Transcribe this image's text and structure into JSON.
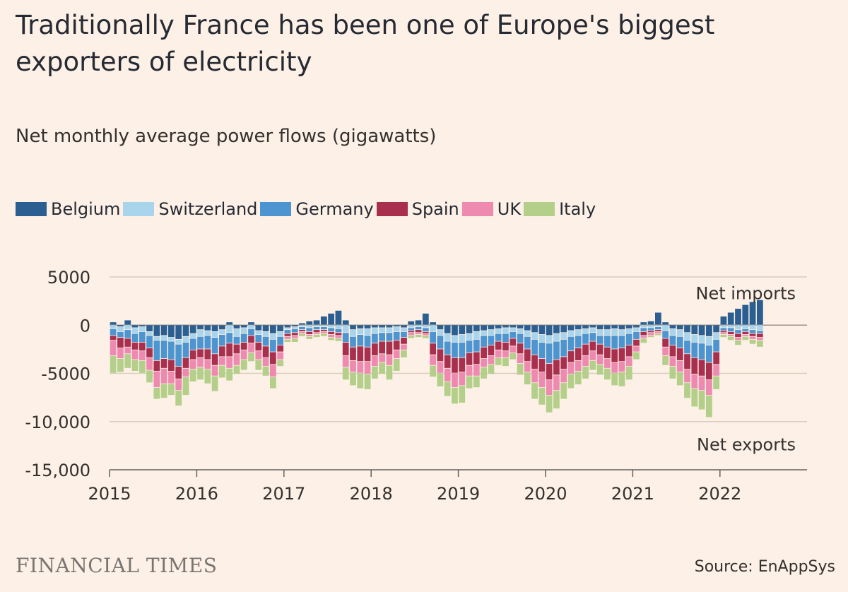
{
  "title": "Traditionally France has been one of Europe's biggest exporters of electricity",
  "subtitle": "Net monthly average power flows (gigawatts)",
  "legend": [
    {
      "name": "Belgium",
      "color": "#2b5f91"
    },
    {
      "name": "Switzerland",
      "color": "#a8d4ec"
    },
    {
      "name": "Germany",
      "color": "#4d95d0"
    },
    {
      "name": "Spain",
      "color": "#a8304e"
    },
    {
      "name": "UK",
      "color": "#ee8ab0"
    },
    {
      "name": "Italy",
      "color": "#b3cf8a"
    }
  ],
  "brand": "FINANCIAL TIMES",
  "source": "Source: EnAppSys",
  "chart_data": {
    "type": "bar",
    "stacked": true,
    "title": "Net monthly average power flows (gigawatts)",
    "ylim": [
      -15000,
      5000
    ],
    "yticks": [
      5000,
      0,
      -5000,
      -10000,
      -15000
    ],
    "ytick_labels": [
      "5000",
      "0",
      "-5000",
      "-10,000",
      "-15,000"
    ],
    "xtick_labels": [
      "2015",
      "2016",
      "2017",
      "2018",
      "2019",
      "2020",
      "2021",
      "2022"
    ],
    "grid": true,
    "legend_position": "top",
    "annotations": [
      "Net imports",
      "Net exports"
    ],
    "series_order": [
      "Belgium",
      "Switzerland",
      "Germany",
      "Spain",
      "UK",
      "Italy"
    ],
    "colors": [
      "#2b5f91",
      "#a8d4ec",
      "#4d95d0",
      "#a8304e",
      "#ee8ab0",
      "#b3cf8a"
    ],
    "months": [
      {
        "date": "2015-01",
        "values": [
          300,
          -400,
          -700,
          -500,
          -1600,
          -1800
        ]
      },
      {
        "date": "2015-02",
        "values": [
          -200,
          -500,
          -600,
          -1100,
          -1100,
          -1400
        ]
      },
      {
        "date": "2015-03",
        "values": [
          500,
          -500,
          -900,
          -900,
          -700,
          -1500
        ]
      },
      {
        "date": "2015-04",
        "values": [
          -300,
          -600,
          -900,
          -800,
          -1000,
          -1200
        ]
      },
      {
        "date": "2015-05",
        "values": [
          -200,
          -500,
          -1100,
          -900,
          -1000,
          -1300
        ]
      },
      {
        "date": "2015-06",
        "values": [
          -700,
          -400,
          -1300,
          -1000,
          -1300,
          -1300
        ]
      },
      {
        "date": "2015-07",
        "values": [
          -1200,
          -400,
          -2100,
          -1100,
          -1700,
          -1200
        ]
      },
      {
        "date": "2015-08",
        "values": [
          -1100,
          -500,
          -1900,
          -1000,
          -1600,
          -1500
        ]
      },
      {
        "date": "2015-09",
        "values": [
          -1300,
          -400,
          -1900,
          -1200,
          -1300,
          -1200
        ]
      },
      {
        "date": "2015-10",
        "values": [
          -1500,
          -500,
          -2300,
          -1300,
          -1200,
          -1600
        ]
      },
      {
        "date": "2015-11",
        "values": [
          -1200,
          -600,
          -1600,
          -1100,
          -900,
          -1900
        ]
      },
      {
        "date": "2015-12",
        "values": [
          -900,
          -500,
          -1200,
          -1000,
          -1000,
          -1300
        ]
      },
      {
        "date": "2016-01",
        "values": [
          -500,
          -700,
          -1300,
          -900,
          -1000,
          -1300
        ]
      },
      {
        "date": "2016-02",
        "values": [
          -600,
          -500,
          -1400,
          -1100,
          -1000,
          -1500
        ]
      },
      {
        "date": "2016-03",
        "values": [
          -700,
          -600,
          -1700,
          -1200,
          -1100,
          -1600
        ]
      },
      {
        "date": "2016-04",
        "values": [
          -500,
          -500,
          -1200,
          -1100,
          -900,
          -1300
        ]
      },
      {
        "date": "2016-05",
        "values": [
          300,
          -800,
          -1100,
          -1400,
          -1200,
          -1300
        ]
      },
      {
        "date": "2016-06",
        "values": [
          -400,
          -800,
          -800,
          -1000,
          -1200,
          -900
        ]
      },
      {
        "date": "2016-07",
        "values": [
          -300,
          -600,
          -900,
          -800,
          -1000,
          -1100
        ]
      },
      {
        "date": "2016-08",
        "values": [
          300,
          -400,
          -700,
          -800,
          -1000,
          -900
        ]
      },
      {
        "date": "2016-09",
        "values": [
          -600,
          -400,
          -800,
          -900,
          -900,
          -1100
        ]
      },
      {
        "date": "2016-10",
        "values": [
          -700,
          -500,
          -1000,
          -1200,
          -900,
          -1000
        ]
      },
      {
        "date": "2016-11",
        "values": [
          -900,
          -600,
          -1300,
          -1300,
          -1300,
          -1200
        ]
      },
      {
        "date": "2016-12",
        "values": [
          -700,
          -500,
          -900,
          -700,
          -800,
          -700
        ]
      },
      {
        "date": "2017-01",
        "values": [
          -300,
          -200,
          -400,
          -300,
          -300,
          -300
        ]
      },
      {
        "date": "2017-02",
        "values": [
          -200,
          -200,
          -400,
          -300,
          -300,
          -400
        ]
      },
      {
        "date": "2017-03",
        "values": [
          200,
          -200,
          -300,
          -200,
          -200,
          -300
        ]
      },
      {
        "date": "2017-04",
        "values": [
          400,
          -300,
          -400,
          -300,
          -200,
          -300
        ]
      },
      {
        "date": "2017-05",
        "values": [
          500,
          -200,
          -300,
          -300,
          -200,
          -300
        ]
      },
      {
        "date": "2017-06",
        "values": [
          900,
          -200,
          -300,
          -200,
          -200,
          -300
        ]
      },
      {
        "date": "2017-07",
        "values": [
          1200,
          -300,
          -400,
          -300,
          -300,
          -300
        ]
      },
      {
        "date": "2017-08",
        "values": [
          1500,
          -400,
          -400,
          -300,
          -300,
          -300
        ]
      },
      {
        "date": "2017-09",
        "values": [
          500,
          -800,
          -1000,
          -1400,
          -1200,
          -1300
        ]
      },
      {
        "date": "2017-10",
        "values": [
          -500,
          -700,
          -1100,
          -1400,
          -1200,
          -1400
        ]
      },
      {
        "date": "2017-11",
        "values": [
          -400,
          -600,
          -1200,
          -1600,
          -1200,
          -1600
        ]
      },
      {
        "date": "2017-12",
        "values": [
          -400,
          -700,
          -1200,
          -1500,
          -1300,
          -1600
        ]
      },
      {
        "date": "2018-01",
        "values": [
          -300,
          -600,
          -1000,
          -1300,
          -1100,
          -1300
        ]
      },
      {
        "date": "2018-02",
        "values": [
          -300,
          -500,
          -900,
          -1300,
          -900,
          -1200
        ]
      },
      {
        "date": "2018-03",
        "values": [
          -300,
          -500,
          -900,
          -1400,
          -1100,
          -1500
        ]
      },
      {
        "date": "2018-04",
        "values": [
          -200,
          -500,
          -900,
          -1000,
          -900,
          -1300
        ]
      },
      {
        "date": "2018-05",
        "values": [
          -300,
          -400,
          -600,
          -700,
          -600,
          -800
        ]
      },
      {
        "date": "2018-06",
        "values": [
          400,
          -300,
          -300,
          -200,
          -300,
          -300
        ]
      },
      {
        "date": "2018-07",
        "values": [
          500,
          -200,
          -300,
          -300,
          -200,
          -300
        ]
      },
      {
        "date": "2018-08",
        "values": [
          1200,
          -300,
          -400,
          -200,
          -200,
          -300
        ]
      },
      {
        "date": "2018-09",
        "values": [
          300,
          -700,
          -1200,
          -1200,
          -1100,
          -1200
        ]
      },
      {
        "date": "2018-10",
        "values": [
          -500,
          -600,
          -1400,
          -1300,
          -1200,
          -1400
        ]
      },
      {
        "date": "2018-11",
        "values": [
          -900,
          -800,
          -1400,
          -1400,
          -1400,
          -1500
        ]
      },
      {
        "date": "2018-12",
        "values": [
          -1100,
          -700,
          -1600,
          -1600,
          -1500,
          -1700
        ]
      },
      {
        "date": "2019-01",
        "values": [
          -1000,
          -800,
          -1600,
          -1500,
          -1400,
          -1800
        ]
      },
      {
        "date": "2019-02",
        "values": [
          -900,
          -700,
          -1300,
          -1300,
          -1100,
          -1300
        ]
      },
      {
        "date": "2019-03",
        "values": [
          -700,
          -800,
          -1300,
          -1300,
          -1200,
          -1200
        ]
      },
      {
        "date": "2019-04",
        "values": [
          -600,
          -500,
          -1200,
          -1200,
          -900,
          -1200
        ]
      },
      {
        "date": "2019-05",
        "values": [
          -500,
          -600,
          -1000,
          -1100,
          -900,
          -1000
        ]
      },
      {
        "date": "2019-06",
        "values": [
          -400,
          -500,
          -800,
          -900,
          -800,
          -800
        ]
      },
      {
        "date": "2019-07",
        "values": [
          -300,
          -600,
          -900,
          -900,
          -700,
          -900
        ]
      },
      {
        "date": "2019-08",
        "values": [
          -300,
          -400,
          -700,
          -800,
          -700,
          -700
        ]
      },
      {
        "date": "2019-09",
        "values": [
          -400,
          -500,
          -1000,
          -1100,
          -1000,
          -1200
        ]
      },
      {
        "date": "2019-10",
        "values": [
          -600,
          -600,
          -1300,
          -1300,
          -1100,
          -1300
        ]
      },
      {
        "date": "2019-11",
        "values": [
          -800,
          -700,
          -1600,
          -1500,
          -1400,
          -1700
        ]
      },
      {
        "date": "2019-12",
        "values": [
          -1000,
          -800,
          -1700,
          -1400,
          -1600,
          -1800
        ]
      },
      {
        "date": "2020-01",
        "values": [
          -1100,
          -800,
          -2100,
          -1700,
          -1600,
          -1800
        ]
      },
      {
        "date": "2020-02",
        "values": [
          -900,
          -800,
          -1900,
          -1600,
          -1600,
          -1900
        ]
      },
      {
        "date": "2020-03",
        "values": [
          -800,
          -700,
          -1800,
          -1300,
          -1400,
          -1700
        ]
      },
      {
        "date": "2020-04",
        "values": [
          -600,
          -600,
          -1500,
          -1200,
          -1200,
          -1500
        ]
      },
      {
        "date": "2020-05",
        "values": [
          -500,
          -600,
          -1300,
          -1300,
          -1100,
          -1400
        ]
      },
      {
        "date": "2020-06",
        "values": [
          -400,
          -500,
          -1100,
          -1200,
          -1100,
          -1300
        ]
      },
      {
        "date": "2020-07",
        "values": [
          -300,
          -500,
          -900,
          -1000,
          -1000,
          -1000
        ]
      },
      {
        "date": "2020-08",
        "values": [
          -500,
          -600,
          -900,
          -1100,
          -1000,
          -1100
        ]
      },
      {
        "date": "2020-09",
        "values": [
          -500,
          -600,
          -1200,
          -1200,
          -1000,
          -1200
        ]
      },
      {
        "date": "2020-10",
        "values": [
          -400,
          -700,
          -1400,
          -1400,
          -1100,
          -1300
        ]
      },
      {
        "date": "2020-11",
        "values": [
          -500,
          -600,
          -1300,
          -1400,
          -1100,
          -1500
        ]
      },
      {
        "date": "2020-12",
        "values": [
          -400,
          -500,
          -1200,
          -1200,
          -1000,
          -1400
        ]
      },
      {
        "date": "2021-01",
        "values": [
          -300,
          -400,
          -800,
          -700,
          -600,
          -800
        ]
      },
      {
        "date": "2021-02",
        "values": [
          300,
          -300,
          -400,
          -400,
          -300,
          -500
        ]
      },
      {
        "date": "2021-03",
        "values": [
          400,
          -300,
          -300,
          -200,
          -300,
          -200
        ]
      },
      {
        "date": "2021-04",
        "values": [
          1300,
          -200,
          -300,
          -200,
          -200,
          -200
        ]
      },
      {
        "date": "2021-05",
        "values": [
          300,
          -600,
          -800,
          -900,
          -900,
          -1000
        ]
      },
      {
        "date": "2021-06",
        "values": [
          -400,
          -700,
          -1000,
          -1200,
          -1000,
          -1300
        ]
      },
      {
        "date": "2021-07",
        "values": [
          -500,
          -700,
          -1200,
          -1300,
          -1200,
          -1400
        ]
      },
      {
        "date": "2021-08",
        "values": [
          -800,
          -800,
          -1400,
          -1600,
          -1400,
          -1600
        ]
      },
      {
        "date": "2021-09",
        "values": [
          -1000,
          -800,
          -1600,
          -1700,
          -1500,
          -1900
        ]
      },
      {
        "date": "2021-10",
        "values": [
          -1100,
          -800,
          -1700,
          -1700,
          -1500,
          -2000
        ]
      },
      {
        "date": "2021-11",
        "values": [
          -1200,
          -900,
          -1800,
          -1800,
          -1600,
          -2300
        ]
      },
      {
        "date": "2021-12",
        "values": [
          -800,
          -700,
          -1300,
          -1300,
          -1200,
          -1400
        ]
      },
      {
        "date": "2022-01",
        "values": [
          900,
          -300,
          -300,
          -200,
          -200,
          -300
        ]
      },
      {
        "date": "2022-02",
        "values": [
          1300,
          -300,
          -400,
          -300,
          -200,
          -400
        ]
      },
      {
        "date": "2022-03",
        "values": [
          1700,
          -500,
          -400,
          -400,
          -300,
          -500
        ]
      },
      {
        "date": "2022-04",
        "values": [
          2100,
          -400,
          -300,
          -300,
          -200,
          -400
        ]
      },
      {
        "date": "2022-05",
        "values": [
          2400,
          -500,
          -400,
          -300,
          -300,
          -500
        ]
      },
      {
        "date": "2022-06",
        "values": [
          2600,
          -600,
          -300,
          -400,
          -300,
          -700
        ]
      }
    ]
  }
}
